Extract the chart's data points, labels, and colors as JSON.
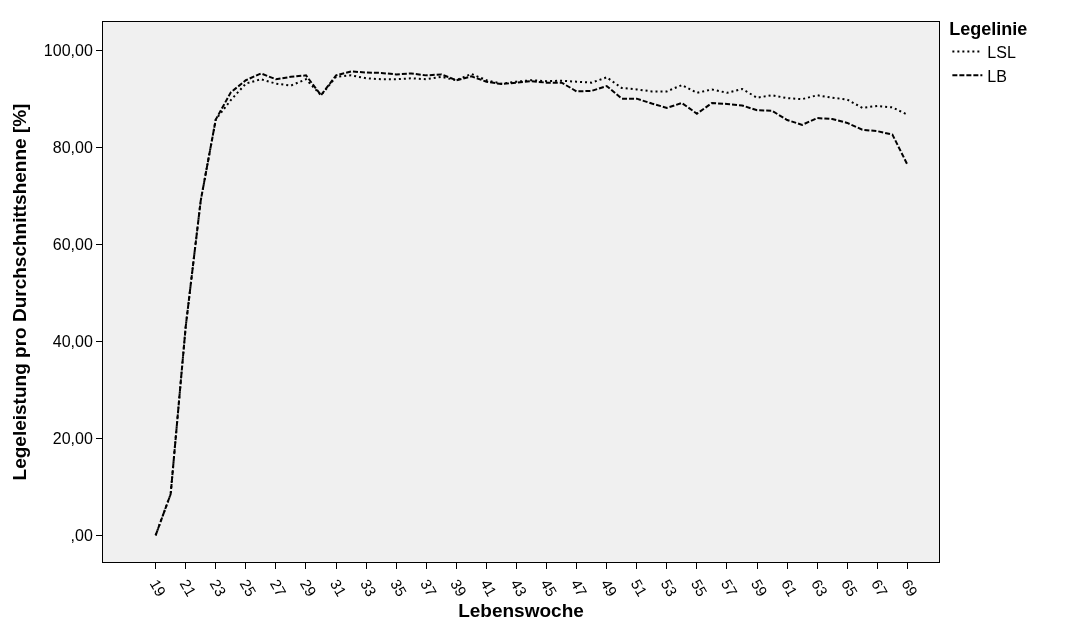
{
  "chart_data": {
    "type": "line",
    "xlabel": "Lebenswoche",
    "ylabel": "Legeleistung pro Durchschnittshenne [%]",
    "legend_title": "Legelinie",
    "legend": "top right",
    "grid": false,
    "marker": "none",
    "x": [
      19,
      20,
      21,
      22,
      23,
      24,
      25,
      26,
      27,
      28,
      29,
      30,
      31,
      32,
      33,
      34,
      35,
      36,
      37,
      38,
      39,
      40,
      41,
      42,
      43,
      44,
      45,
      46,
      47,
      48,
      49,
      50,
      51,
      52,
      53,
      54,
      55,
      56,
      57,
      58,
      59,
      60,
      61,
      62,
      63,
      64,
      65,
      66,
      67,
      68,
      69
    ],
    "xlim": [
      15.5,
      71.1
    ],
    "xticks": [
      19,
      21,
      23,
      25,
      27,
      29,
      31,
      33,
      35,
      37,
      39,
      41,
      43,
      45,
      47,
      49,
      51,
      53,
      55,
      57,
      59,
      61,
      63,
      65,
      67,
      69
    ],
    "ylim": [
      -5.5,
      105.8
    ],
    "yticks": [
      {
        "value": 0,
        "label": ",00"
      },
      {
        "value": 20,
        "label": "20,00"
      },
      {
        "value": 40,
        "label": "40,00"
      },
      {
        "value": 60,
        "label": "60,00"
      },
      {
        "value": 80,
        "label": "80,00"
      },
      {
        "value": 100,
        "label": "100,00"
      }
    ],
    "series": [
      {
        "name": "LSL",
        "color": "#000000",
        "line_style": "dotted",
        "values": [
          0,
          8.5,
          43,
          69,
          85.7,
          89.7,
          93.1,
          94,
          93.1,
          92.7,
          94,
          90.7,
          94.5,
          94.8,
          94.2,
          94,
          94,
          94.2,
          94,
          94.5,
          93.8,
          95.1,
          93.8,
          93.1,
          93.5,
          93.8,
          93.6,
          93.7,
          93.5,
          93.3,
          94.4,
          92.2,
          91.9,
          91.5,
          91.5,
          92.8,
          91.2,
          91.9,
          91.2,
          92,
          90.2,
          90.7,
          90.1,
          89.9,
          90.7,
          90.2,
          89.8,
          88.1,
          88.5,
          88.2,
          86.7
        ]
      },
      {
        "name": "LB",
        "color": "#000000",
        "line_style": "dashed",
        "values": [
          0,
          8.5,
          43,
          69,
          85.7,
          91.3,
          93.8,
          95.2,
          94,
          94.5,
          94.8,
          90.7,
          94.8,
          95.6,
          95.4,
          95.3,
          95,
          95.2,
          94.8,
          95,
          93.8,
          94.6,
          93.5,
          93,
          93.3,
          93.6,
          93.3,
          93.3,
          91.5,
          91.6,
          92.6,
          90,
          90,
          89,
          88.1,
          89.1,
          86.9,
          89.1,
          88.9,
          88.6,
          87.6,
          87.5,
          85.6,
          84.6,
          86,
          85.8,
          85,
          83.6,
          83.3,
          82.6,
          76.4
        ]
      }
    ]
  }
}
